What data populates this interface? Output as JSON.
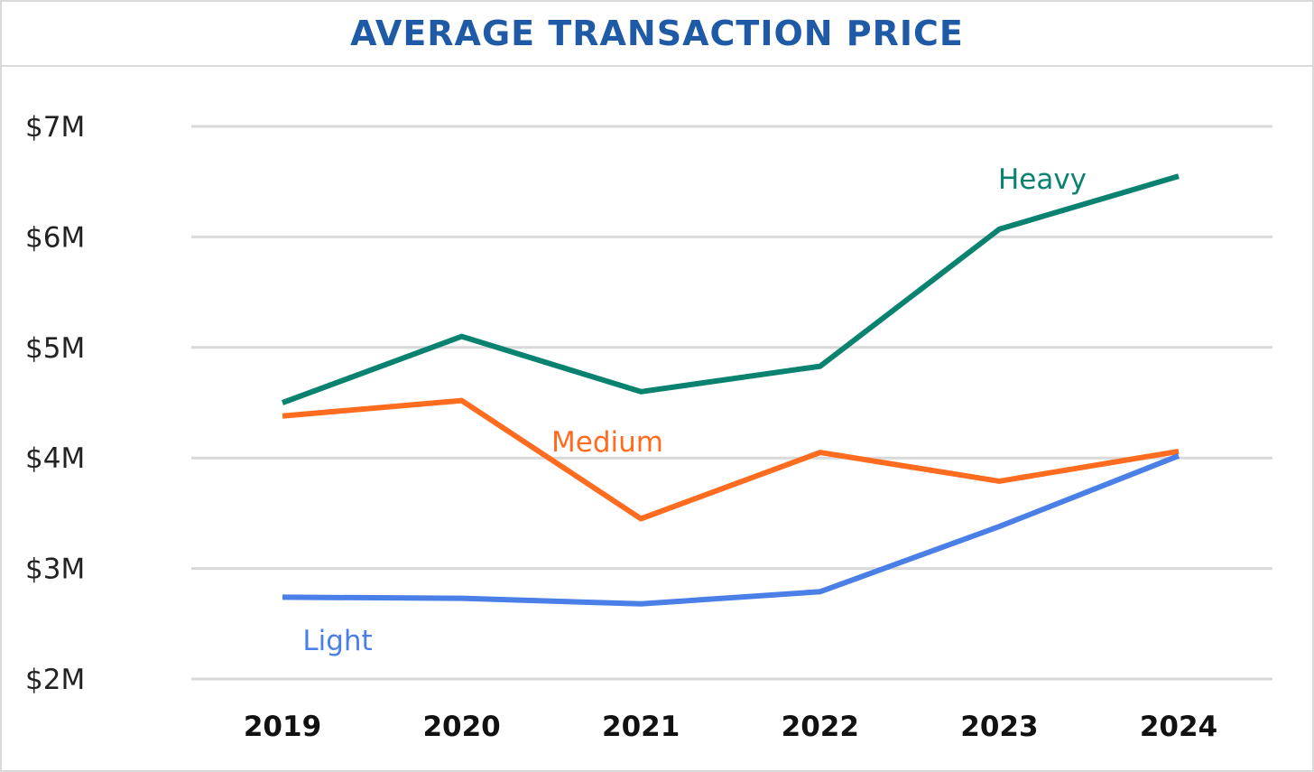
{
  "chart_data": {
    "type": "line",
    "title": "AVERAGE TRANSACTION PRICE",
    "xlabel": "",
    "ylabel": "",
    "categories": [
      "2019",
      "2020",
      "2021",
      "2022",
      "2023",
      "2024"
    ],
    "y_ticks": [
      "$2M",
      "$3M",
      "$4M",
      "$5M",
      "$6M",
      "$7M"
    ],
    "y_tick_values": [
      2,
      3,
      4,
      5,
      6,
      7
    ],
    "ylim": [
      2,
      7
    ],
    "grid": true,
    "series": [
      {
        "name": "Heavy",
        "color": "#0a8270",
        "values": [
          4.5,
          5.1,
          4.6,
          4.83,
          6.07,
          6.55
        ]
      },
      {
        "name": "Medium",
        "color": "#ff6b1f",
        "values": [
          4.38,
          4.52,
          3.45,
          4.05,
          3.79,
          4.06
        ]
      },
      {
        "name": "Light",
        "color": "#4a7fe8",
        "values": [
          2.74,
          2.73,
          2.68,
          2.79,
          3.38,
          4.02
        ]
      }
    ]
  },
  "colors": {
    "title": "#1f5aa6",
    "grid": "#d9d9d9",
    "border": "#d9d9d9"
  }
}
